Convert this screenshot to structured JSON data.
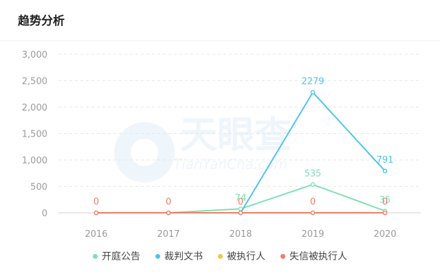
{
  "header": {
    "title": "趋势分析"
  },
  "watermark": {
    "brand": "天眼查",
    "domain": "TianYanCha.com"
  },
  "chart_data": {
    "type": "line",
    "categories": [
      "2016",
      "2017",
      "2018",
      "2019",
      "2020"
    ],
    "ylim": [
      0,
      3000
    ],
    "yticks": [
      0,
      500,
      1000,
      1500,
      2000,
      2500,
      3000
    ],
    "ytick_labels": [
      "0",
      "500",
      "1,000",
      "1,500",
      "2,000",
      "2,500",
      "3,000"
    ],
    "grid": true,
    "legend_position": "bottom",
    "series": [
      {
        "name": "开庭公告",
        "color": "#7ee0b2",
        "values": [
          0,
          0,
          74,
          535,
          35
        ],
        "labels": [
          "",
          "",
          "74",
          "535",
          "35"
        ]
      },
      {
        "name": "裁判文书",
        "color": "#4cc4ea",
        "values": [
          0,
          0,
          0,
          2279,
          791
        ],
        "labels": [
          "",
          "",
          "",
          "2279",
          "791"
        ]
      },
      {
        "name": "被执行人",
        "color": "#f5c242",
        "values": [
          0,
          0,
          0,
          0,
          0
        ],
        "labels": [
          "",
          "",
          "",
          "",
          ""
        ]
      },
      {
        "name": "失信被执行人",
        "color": "#f07c66",
        "values": [
          0,
          0,
          0,
          0,
          0
        ],
        "labels": [
          "0",
          "0",
          "0",
          "0",
          "0"
        ]
      }
    ]
  }
}
